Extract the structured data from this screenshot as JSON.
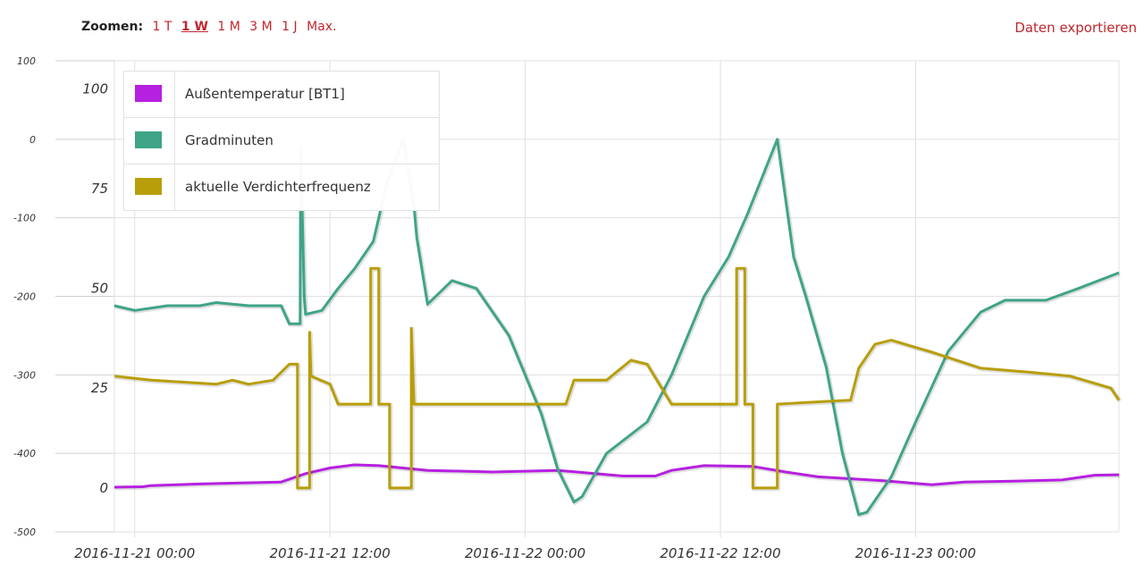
{
  "toolbar": {
    "zoom_label": "Zoomen:",
    "zoom_options": [
      "1 T",
      "1 W",
      "1 M",
      "3 M",
      "1 J",
      "Max."
    ],
    "active_zoom": "1 W",
    "export_label": "Daten exportieren"
  },
  "colors": {
    "link": "#c0272d",
    "grid": "#e0e0e0"
  },
  "chart_data": {
    "type": "line",
    "x_ticks": [
      "2016-11-21 00:00",
      "2016-11-21 12:00",
      "2016-11-22 00:00",
      "2016-11-22 12:00",
      "2016-11-23 00:00"
    ],
    "xlim": [
      "2016-11-20 22:45",
      "2016-11-23 12:30"
    ],
    "y_left_ticks": [
      "100",
      "0",
      "-100",
      "-200",
      "-300",
      "-400",
      "-500"
    ],
    "y_left_lim": [
      -500,
      100
    ],
    "y_right_ticks": [
      "100",
      "75",
      "50",
      "25",
      "0"
    ],
    "y_right_lim": [
      -11,
      107
    ],
    "grid": true,
    "legend_position": "top-left",
    "series": [
      {
        "name": "Außentemperatur [BT1]",
        "color": "#b620e0",
        "axis": "right",
        "points": [
          [
            "2016-11-20 22:45",
            0.2
          ],
          [
            "2016-11-21 00:30",
            0.3
          ],
          [
            "2016-11-21 01:00",
            0.6
          ],
          [
            "2016-11-21 04:00",
            1.0
          ],
          [
            "2016-11-21 09:00",
            1.5
          ],
          [
            "2016-11-21 10:30",
            3.6
          ],
          [
            "2016-11-21 12:00",
            5.0
          ],
          [
            "2016-11-21 13:30",
            5.8
          ],
          [
            "2016-11-21 15:00",
            5.6
          ],
          [
            "2016-11-21 18:00",
            4.4
          ],
          [
            "2016-11-21 22:00",
            4.0
          ],
          [
            "2016-11-22 02:00",
            4.4
          ],
          [
            "2016-11-22 06:00",
            3.0
          ],
          [
            "2016-11-22 08:00",
            3.0
          ],
          [
            "2016-11-22 09:00",
            4.4
          ],
          [
            "2016-11-22 11:00",
            5.6
          ],
          [
            "2016-11-22 14:00",
            5.4
          ],
          [
            "2016-11-22 16:00",
            4.0
          ],
          [
            "2016-11-22 18:00",
            2.8
          ],
          [
            "2016-11-22 22:00",
            1.8
          ],
          [
            "2016-11-23 01:00",
            0.8
          ],
          [
            "2016-11-23 03:00",
            1.5
          ],
          [
            "2016-11-23 06:00",
            1.7
          ],
          [
            "2016-11-23 09:00",
            2.0
          ],
          [
            "2016-11-23 11:00",
            3.2
          ],
          [
            "2016-11-23 12:30",
            3.3
          ]
        ]
      },
      {
        "name": "Gradminuten",
        "color": "#3fa487",
        "axis": "left",
        "points": [
          [
            "2016-11-20 22:45",
            -212
          ],
          [
            "2016-11-21 00:00",
            -218
          ],
          [
            "2016-11-21 02:00",
            -212
          ],
          [
            "2016-11-21 04:00",
            -212
          ],
          [
            "2016-11-21 05:00",
            -208
          ],
          [
            "2016-11-21 07:00",
            -212
          ],
          [
            "2016-11-21 09:00",
            -212
          ],
          [
            "2016-11-21 09:30",
            -235
          ],
          [
            "2016-11-21 10:10",
            -235
          ],
          [
            "2016-11-21 10:12",
            -10
          ],
          [
            "2016-11-21 10:25",
            -200
          ],
          [
            "2016-11-21 10:30",
            -223
          ],
          [
            "2016-11-21 11:30",
            -218
          ],
          [
            "2016-11-21 12:30",
            -190
          ],
          [
            "2016-11-21 13:30",
            -165
          ],
          [
            "2016-11-21 14:40",
            -130
          ],
          [
            "2016-11-21 15:30",
            -55
          ],
          [
            "2016-11-21 16:30",
            0
          ],
          [
            "2016-11-21 17:10",
            -85
          ],
          [
            "2016-11-21 17:20",
            -125
          ],
          [
            "2016-11-21 18:00",
            -210
          ],
          [
            "2016-11-21 19:30",
            -180
          ],
          [
            "2016-11-21 21:00",
            -190
          ],
          [
            "2016-11-21 23:00",
            -250
          ],
          [
            "2016-11-22 01:00",
            -350
          ],
          [
            "2016-11-22 02:00",
            -420
          ],
          [
            "2016-11-22 03:00",
            -462
          ],
          [
            "2016-11-22 03:30",
            -455
          ],
          [
            "2016-11-22 05:00",
            -400
          ],
          [
            "2016-11-22 07:30",
            -360
          ],
          [
            "2016-11-22 09:00",
            -300
          ],
          [
            "2016-11-22 11:00",
            -200
          ],
          [
            "2016-11-22 12:30",
            -150
          ],
          [
            "2016-11-22 13:40",
            -95
          ],
          [
            "2016-11-22 15:30",
            0
          ],
          [
            "2016-11-22 16:30",
            -150
          ],
          [
            "2016-11-22 17:15",
            -200
          ],
          [
            "2016-11-22 18:30",
            -290
          ],
          [
            "2016-11-22 19:30",
            -400
          ],
          [
            "2016-11-22 20:30",
            -478
          ],
          [
            "2016-11-22 21:00",
            -475
          ],
          [
            "2016-11-22 22:30",
            -430
          ],
          [
            "2016-11-23 00:00",
            -360
          ],
          [
            "2016-11-23 02:00",
            -270
          ],
          [
            "2016-11-23 04:00",
            -220
          ],
          [
            "2016-11-23 05:30",
            -205
          ],
          [
            "2016-11-23 08:00",
            -205
          ],
          [
            "2016-11-23 10:00",
            -190
          ],
          [
            "2016-11-23 12:30",
            -170
          ]
        ]
      },
      {
        "name": "aktuelle Verdichterfrequenz",
        "color": "#b89e08",
        "axis": "right",
        "points": [
          [
            "2016-11-20 22:45",
            28
          ],
          [
            "2016-11-21 01:00",
            27
          ],
          [
            "2016-11-21 05:00",
            26
          ],
          [
            "2016-11-21 06:00",
            27
          ],
          [
            "2016-11-21 07:00",
            26
          ],
          [
            "2016-11-21 08:30",
            27
          ],
          [
            "2016-11-21 09:30",
            31
          ],
          [
            "2016-11-21 10:00",
            31
          ],
          [
            "2016-11-21 10:00",
            0
          ],
          [
            "2016-11-21 10:45",
            0
          ],
          [
            "2016-11-21 10:45",
            39
          ],
          [
            "2016-11-21 10:50",
            28
          ],
          [
            "2016-11-21 12:00",
            26
          ],
          [
            "2016-11-21 12:30",
            21
          ],
          [
            "2016-11-21 14:30",
            21
          ],
          [
            "2016-11-21 14:30",
            55
          ],
          [
            "2016-11-21 15:00",
            55
          ],
          [
            "2016-11-21 15:00",
            21
          ],
          [
            "2016-11-21 15:40",
            21
          ],
          [
            "2016-11-21 15:40",
            0
          ],
          [
            "2016-11-21 17:00",
            0
          ],
          [
            "2016-11-21 17:00",
            40
          ],
          [
            "2016-11-21 17:10",
            21
          ],
          [
            "2016-11-22 02:30",
            21
          ],
          [
            "2016-11-22 03:00",
            27
          ],
          [
            "2016-11-22 05:00",
            27
          ],
          [
            "2016-11-22 06:30",
            32
          ],
          [
            "2016-11-22 07:30",
            31
          ],
          [
            "2016-11-22 09:00",
            21
          ],
          [
            "2016-11-22 13:00",
            21
          ],
          [
            "2016-11-22 13:00",
            55
          ],
          [
            "2016-11-22 13:30",
            55
          ],
          [
            "2016-11-22 13:30",
            21
          ],
          [
            "2016-11-22 14:00",
            21
          ],
          [
            "2016-11-22 14:00",
            0
          ],
          [
            "2016-11-22 15:30",
            0
          ],
          [
            "2016-11-22 15:30",
            21
          ],
          [
            "2016-11-22 20:00",
            22
          ],
          [
            "2016-11-22 20:30",
            30
          ],
          [
            "2016-11-22 21:30",
            36
          ],
          [
            "2016-11-22 22:30",
            37
          ],
          [
            "2016-11-23 01:00",
            34
          ],
          [
            "2016-11-23 04:00",
            30
          ],
          [
            "2016-11-23 07:00",
            29
          ],
          [
            "2016-11-23 09:30",
            28
          ],
          [
            "2016-11-23 12:00",
            25
          ],
          [
            "2016-11-23 12:30",
            22
          ]
        ]
      }
    ]
  }
}
